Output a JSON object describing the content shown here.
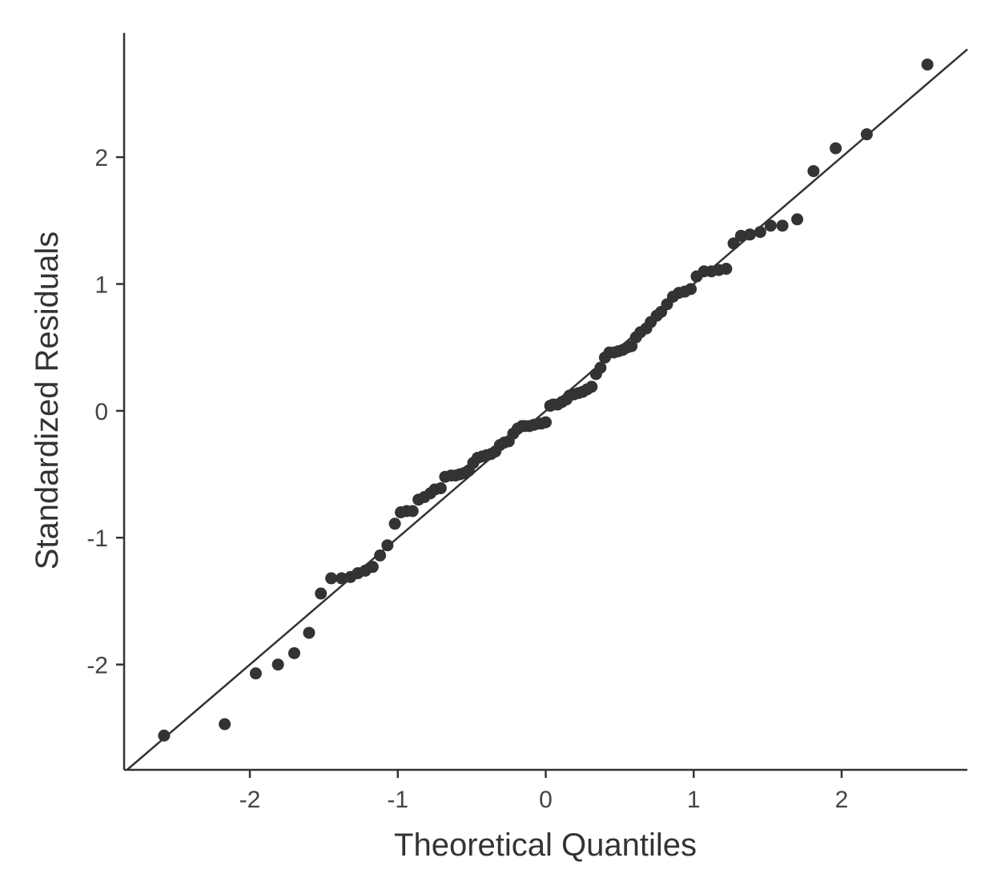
{
  "chart_data": {
    "type": "scatter",
    "title": "",
    "xlabel": "Theoretical Quantiles",
    "ylabel": "Standardized Residuals",
    "xlim": [
      -2.85,
      2.85
    ],
    "ylim": [
      -2.83,
      2.98
    ],
    "x_ticks": [
      -2,
      -1,
      0,
      1,
      2
    ],
    "x_tick_labels": [
      "-2",
      "-1",
      "0",
      "1",
      "2"
    ],
    "y_ticks": [
      -2,
      -1,
      0,
      1,
      2
    ],
    "y_tick_labels": [
      "-2",
      "-1",
      "0",
      "1",
      "2"
    ],
    "grid": false,
    "reference_line": {
      "slope": 1,
      "intercept": 0
    },
    "series": [
      {
        "color": "#333333",
        "points": [
          [
            -2.58,
            -2.56
          ],
          [
            -2.17,
            -2.47
          ],
          [
            -1.96,
            -2.07
          ],
          [
            -1.81,
            -2.0
          ],
          [
            -1.7,
            -1.91
          ],
          [
            -1.6,
            -1.75
          ],
          [
            -1.52,
            -1.44
          ],
          [
            -1.45,
            -1.32
          ],
          [
            -1.38,
            -1.32
          ],
          [
            -1.32,
            -1.31
          ],
          [
            -1.27,
            -1.28
          ],
          [
            -1.22,
            -1.26
          ],
          [
            -1.17,
            -1.23
          ],
          [
            -1.12,
            -1.14
          ],
          [
            -1.07,
            -1.06
          ],
          [
            -1.02,
            -0.89
          ],
          [
            -0.98,
            -0.8
          ],
          [
            -0.94,
            -0.79
          ],
          [
            -0.9,
            -0.79
          ],
          [
            -0.86,
            -0.7
          ],
          [
            -0.82,
            -0.68
          ],
          [
            -0.78,
            -0.65
          ],
          [
            -0.75,
            -0.62
          ],
          [
            -0.71,
            -0.61
          ],
          [
            -0.68,
            -0.52
          ],
          [
            -0.64,
            -0.51
          ],
          [
            -0.61,
            -0.51
          ],
          [
            -0.58,
            -0.5
          ],
          [
            -0.55,
            -0.49
          ],
          [
            -0.52,
            -0.47
          ],
          [
            -0.49,
            -0.41
          ],
          [
            -0.46,
            -0.37
          ],
          [
            -0.43,
            -0.36
          ],
          [
            -0.4,
            -0.35
          ],
          [
            -0.37,
            -0.34
          ],
          [
            -0.34,
            -0.32
          ],
          [
            -0.31,
            -0.27
          ],
          [
            -0.28,
            -0.25
          ],
          [
            -0.25,
            -0.24
          ],
          [
            -0.22,
            -0.18
          ],
          [
            -0.19,
            -0.14
          ],
          [
            -0.16,
            -0.12
          ],
          [
            -0.14,
            -0.12
          ],
          [
            -0.11,
            -0.12
          ],
          [
            -0.08,
            -0.11
          ],
          [
            -0.05,
            -0.1
          ],
          [
            -0.03,
            -0.1
          ],
          [
            0.0,
            -0.09
          ],
          [
            0.03,
            0.04
          ],
          [
            0.05,
            0.05
          ],
          [
            0.08,
            0.05
          ],
          [
            0.11,
            0.07
          ],
          [
            0.14,
            0.09
          ],
          [
            0.16,
            0.12
          ],
          [
            0.19,
            0.13
          ],
          [
            0.22,
            0.14
          ],
          [
            0.25,
            0.15
          ],
          [
            0.28,
            0.17
          ],
          [
            0.31,
            0.19
          ],
          [
            0.34,
            0.29
          ],
          [
            0.37,
            0.34
          ],
          [
            0.4,
            0.42
          ],
          [
            0.43,
            0.46
          ],
          [
            0.46,
            0.46
          ],
          [
            0.49,
            0.47
          ],
          [
            0.52,
            0.48
          ],
          [
            0.55,
            0.5
          ],
          [
            0.58,
            0.51
          ],
          [
            0.61,
            0.58
          ],
          [
            0.64,
            0.62
          ],
          [
            0.68,
            0.65
          ],
          [
            0.71,
            0.7
          ],
          [
            0.75,
            0.75
          ],
          [
            0.78,
            0.78
          ],
          [
            0.82,
            0.84
          ],
          [
            0.86,
            0.9
          ],
          [
            0.9,
            0.93
          ],
          [
            0.94,
            0.94
          ],
          [
            0.98,
            0.96
          ],
          [
            1.02,
            1.06
          ],
          [
            1.07,
            1.1
          ],
          [
            1.12,
            1.1
          ],
          [
            1.17,
            1.11
          ],
          [
            1.22,
            1.12
          ],
          [
            1.27,
            1.32
          ],
          [
            1.32,
            1.38
          ],
          [
            1.38,
            1.39
          ],
          [
            1.45,
            1.41
          ],
          [
            1.52,
            1.46
          ],
          [
            1.6,
            1.46
          ],
          [
            1.7,
            1.51
          ],
          [
            1.81,
            1.89
          ],
          [
            1.96,
            2.07
          ],
          [
            2.17,
            2.18
          ],
          [
            2.58,
            2.73
          ]
        ]
      }
    ]
  }
}
